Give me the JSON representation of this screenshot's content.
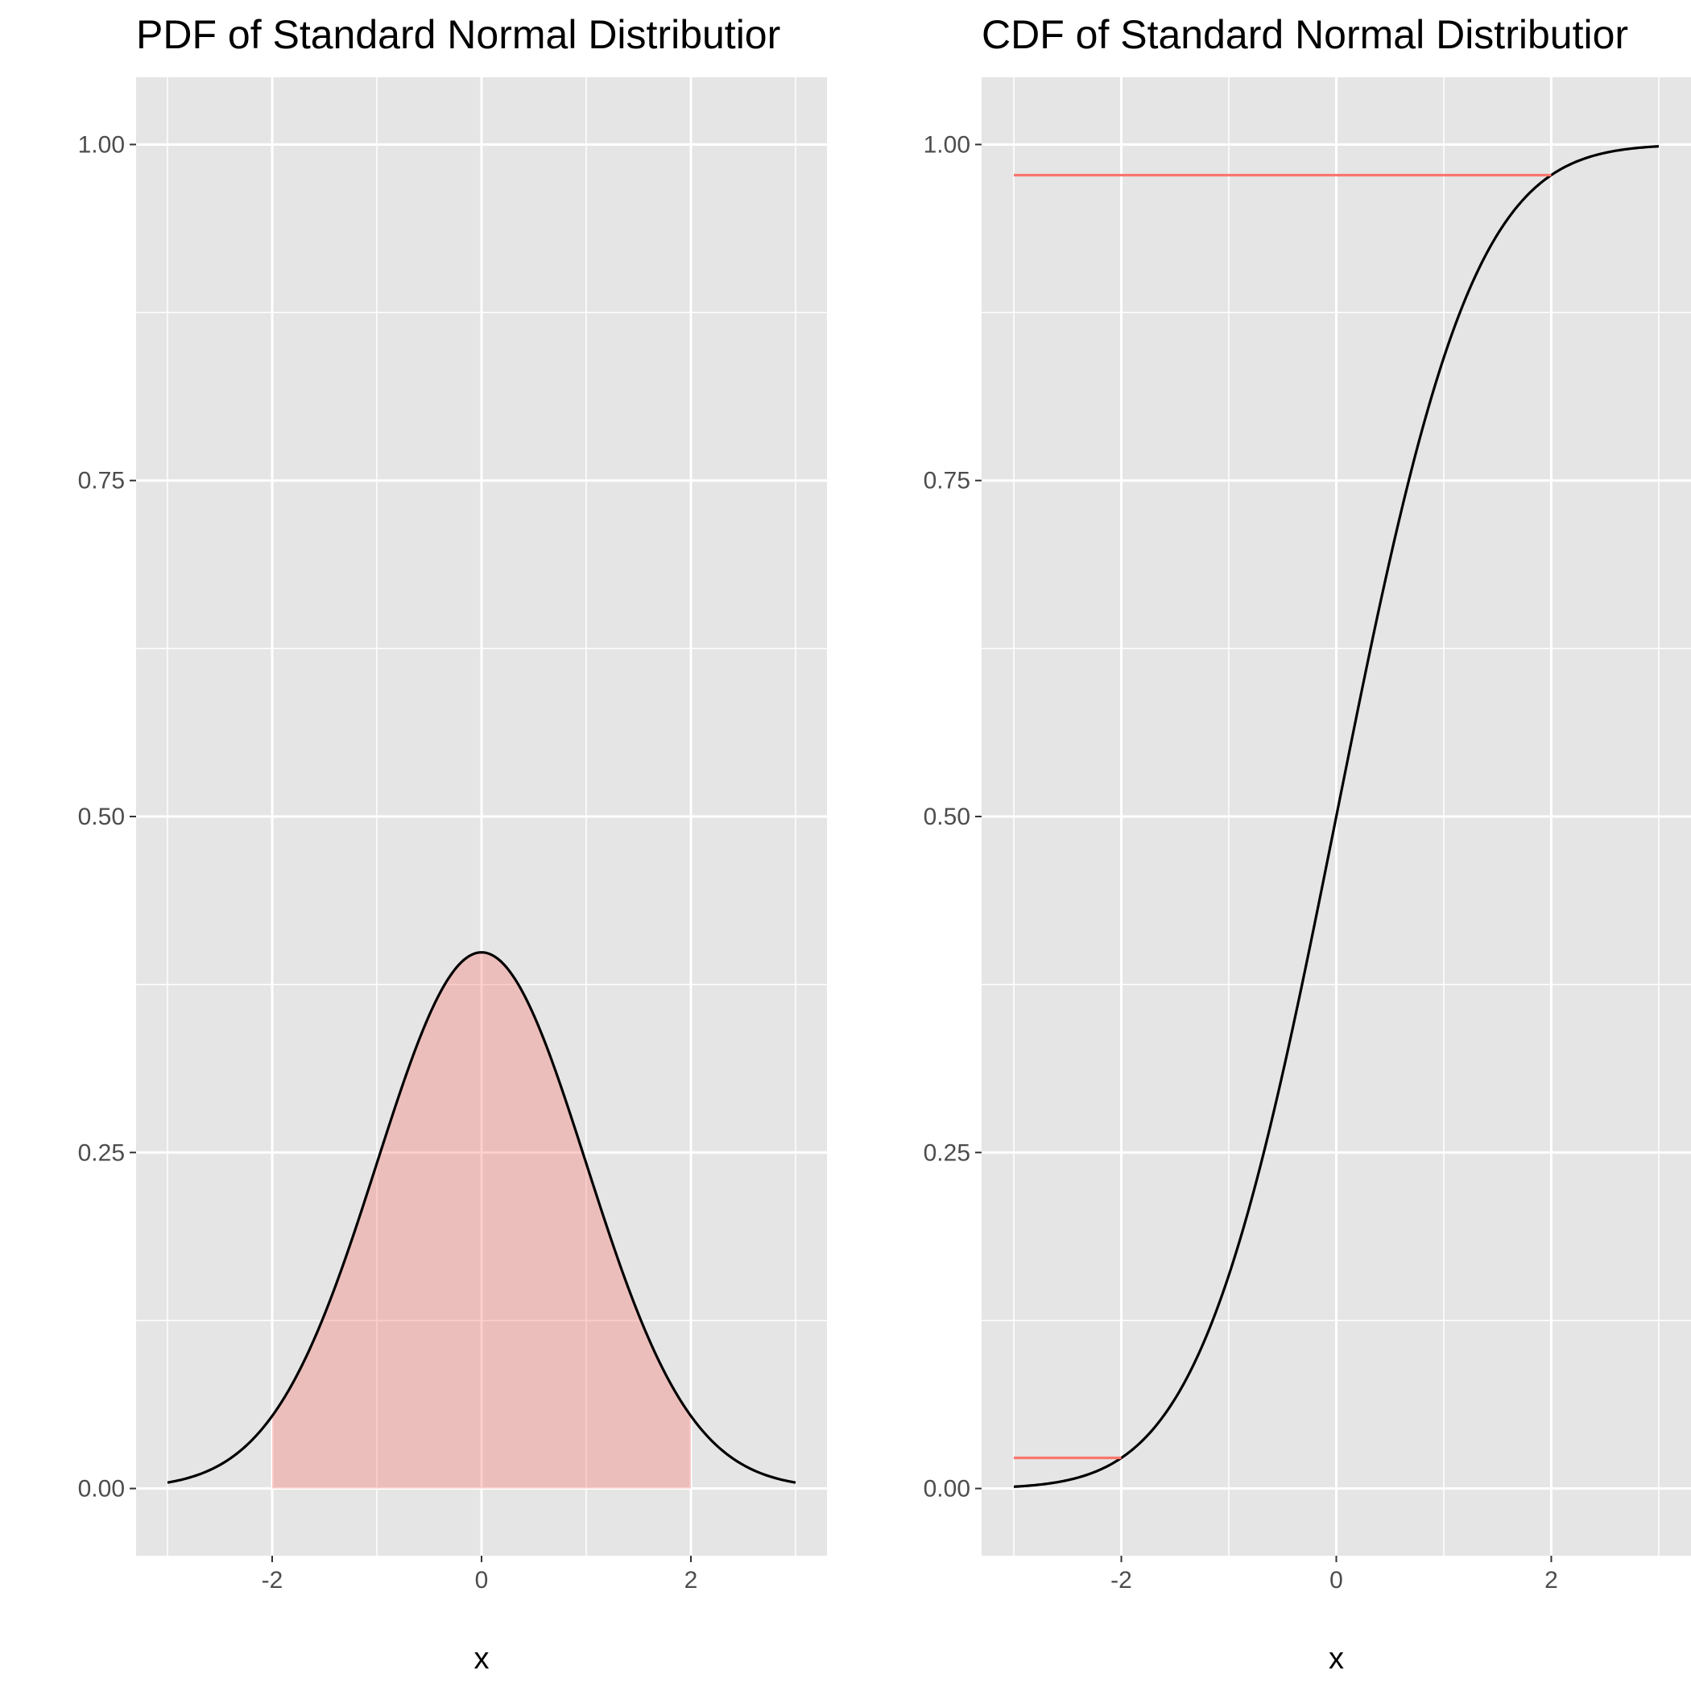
{
  "chart_data": [
    {
      "type": "area",
      "title": "PDF of Standard Normal Distributior",
      "xlabel": "x",
      "ylabel": "",
      "xlim": [
        -3.3,
        3.3
      ],
      "ylim": [
        -0.05,
        1.05
      ],
      "x_ticks": [
        -2,
        0,
        2
      ],
      "x_tick_labels": [
        "-2",
        "0",
        "2"
      ],
      "y_ticks": [
        0,
        0.25,
        0.5,
        0.75,
        1
      ],
      "y_tick_labels": [
        "0.00",
        "0.25",
        "0.50",
        "0.75",
        "1.00"
      ],
      "grid": true,
      "series": [
        {
          "kind": "line",
          "function": "normal_pdf",
          "x_range": [
            -3,
            3
          ],
          "color": "#000000"
        },
        {
          "kind": "shaded_area",
          "function": "normal_pdf",
          "x_range": [
            -2,
            2
          ],
          "color": "#f8766d",
          "opacity": 0.35
        }
      ]
    },
    {
      "type": "line",
      "title": "CDF of Standard Normal Distributior",
      "xlabel": "x",
      "ylabel": "",
      "xlim": [
        -3.3,
        3.3
      ],
      "ylim": [
        -0.05,
        1.05
      ],
      "x_ticks": [
        -2,
        0,
        2
      ],
      "x_tick_labels": [
        "-2",
        "0",
        "2"
      ],
      "y_ticks": [
        0,
        0.25,
        0.5,
        0.75,
        1
      ],
      "y_tick_labels": [
        "0.00",
        "0.25",
        "0.50",
        "0.75",
        "1.00"
      ],
      "grid": true,
      "series": [
        {
          "kind": "line",
          "function": "normal_cdf",
          "x_range": [
            -3,
            3
          ],
          "color": "#000000"
        },
        {
          "kind": "segment",
          "x": [
            -3,
            -2
          ],
          "y": [
            0.0228,
            0.0228
          ],
          "color": "#f8766d"
        },
        {
          "kind": "segment",
          "x": [
            -3,
            2
          ],
          "y": [
            0.9772,
            0.9772
          ],
          "color": "#f8766d"
        }
      ]
    }
  ]
}
